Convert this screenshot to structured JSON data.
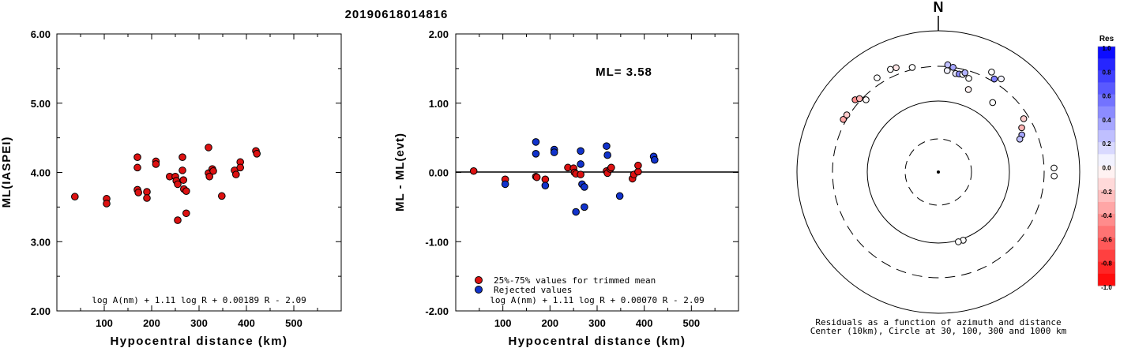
{
  "event_id": "20190618014816",
  "chart_data": [
    {
      "type": "scatter",
      "title": "",
      "xlabel": "Hypocentral distance (km)",
      "ylabel": "ML(IASPEI)",
      "xlim": [
        0,
        600
      ],
      "ylim": [
        2.0,
        6.0
      ],
      "xticks": [
        "100",
        "200",
        "300",
        "400",
        "500"
      ],
      "yticks": [
        "2.00",
        "3.00",
        "4.00",
        "5.00",
        "6.00"
      ],
      "formula": "log A(nm) + 1.11 log R + 0.00189 R - 2.09",
      "series": [
        {
          "color": "#dd1111",
          "points": [
            [
              38,
              3.65
            ],
            [
              105,
              3.62
            ],
            [
              105,
              3.55
            ],
            [
              170,
              4.22
            ],
            [
              170,
              4.07
            ],
            [
              170,
              3.75
            ],
            [
              172,
              3.71
            ],
            [
              190,
              3.72
            ],
            [
              190,
              3.63
            ],
            [
              209,
              4.16
            ],
            [
              209,
              4.12
            ],
            [
              238,
              3.94
            ],
            [
              250,
              3.94
            ],
            [
              252,
              3.88
            ],
            [
              255,
              3.83
            ],
            [
              255,
              3.31
            ],
            [
              265,
              4.22
            ],
            [
              265,
              4.03
            ],
            [
              267,
              3.89
            ],
            [
              268,
              3.76
            ],
            [
              273,
              3.73
            ],
            [
              273,
              3.41
            ],
            [
              320,
              4.36
            ],
            [
              320,
              3.99
            ],
            [
              322,
              3.94
            ],
            [
              328,
              4.05
            ],
            [
              330,
              4.02
            ],
            [
              348,
              3.66
            ],
            [
              375,
              4.03
            ],
            [
              378,
              3.97
            ],
            [
              387,
              4.15
            ],
            [
              387,
              4.07
            ],
            [
              420,
              4.31
            ],
            [
              422,
              4.27
            ]
          ]
        }
      ]
    },
    {
      "type": "scatter",
      "title": "",
      "xlabel": "Hypocentral distance (km)",
      "ylabel": "ML - ML(evt)",
      "xlim": [
        0,
        600
      ],
      "ylim": [
        -2.0,
        2.0
      ],
      "xticks": [
        "100",
        "200",
        "300",
        "400",
        "500"
      ],
      "yticks": [
        "-2.00",
        "-1.00",
        "0.00",
        "1.00",
        "2.00"
      ],
      "annotation": "ML= 3.58",
      "formula": "log A(nm) + 1.11 log R + 0.00070 R - 2.09",
      "legend": [
        "25%-75% values for trimmed mean",
        "Rejected values"
      ],
      "series": [
        {
          "name": "25%-75% values for trimmed mean",
          "color": "#dd1111",
          "points": [
            [
              38,
              0.02
            ],
            [
              105,
              -0.1
            ],
            [
              170,
              -0.06
            ],
            [
              172,
              -0.07
            ],
            [
              190,
              -0.1
            ],
            [
              238,
              0.07
            ],
            [
              250,
              0.06
            ],
            [
              252,
              0.0
            ],
            [
              255,
              -0.02
            ],
            [
              265,
              -0.03
            ],
            [
              320,
              0.02
            ],
            [
              322,
              -0.01
            ],
            [
              328,
              0.05
            ],
            [
              330,
              0.07
            ],
            [
              375,
              -0.09
            ],
            [
              378,
              -0.03
            ],
            [
              387,
              0.01
            ],
            [
              387,
              0.1
            ]
          ]
        },
        {
          "name": "Rejected values",
          "color": "#1133cc",
          "points": [
            [
              105,
              -0.17
            ],
            [
              170,
              0.44
            ],
            [
              170,
              0.27
            ],
            [
              190,
              -0.19
            ],
            [
              209,
              0.33
            ],
            [
              209,
              0.29
            ],
            [
              255,
              -0.57
            ],
            [
              265,
              0.31
            ],
            [
              265,
              0.12
            ],
            [
              268,
              -0.17
            ],
            [
              273,
              -0.21
            ],
            [
              273,
              -0.5
            ],
            [
              320,
              0.38
            ],
            [
              322,
              0.25
            ],
            [
              348,
              -0.34
            ],
            [
              420,
              0.23
            ],
            [
              422,
              0.18
            ]
          ]
        }
      ]
    },
    {
      "type": "polar-scatter",
      "north_label": "N",
      "caption": [
        "Residuals as a function of azimuth and distance",
        "Center (10km), Circle at 30, 100, 300 and 1000 km"
      ],
      "colorbar": {
        "title": "Res",
        "ticks": [
          "1.0",
          "0.8",
          "0.6",
          "0.4",
          "0.2",
          "0.0",
          "-0.2",
          "-0.4",
          "-0.6",
          "-0.8",
          "-1.0"
        ],
        "max_color": "#0000ff",
        "min_color": "#ff0000"
      },
      "points": [
        {
          "az": 299,
          "dist": 330,
          "res": -0.35
        },
        {
          "az": 302,
          "dist": 322,
          "res": -0.2
        },
        {
          "az": 311,
          "dist": 348,
          "res": -0.45
        },
        {
          "az": 313,
          "dist": 320,
          "res": -0.3
        },
        {
          "az": 315,
          "dist": 268,
          "res": -0.02
        },
        {
          "az": 327,
          "dist": 375,
          "res": 0.0
        },
        {
          "az": 335,
          "dist": 387,
          "res": 0.0
        },
        {
          "az": 338,
          "dist": 378,
          "res": -0.1
        },
        {
          "az": 346,
          "dist": 322,
          "res": 0.0
        },
        {
          "az": 5,
          "dist": 265,
          "res": 0.05
        },
        {
          "az": 5,
          "dist": 320,
          "res": 0.25
        },
        {
          "az": 8,
          "dist": 300,
          "res": 0.35
        },
        {
          "az": 10,
          "dist": 250,
          "res": 0.1
        },
        {
          "az": 12,
          "dist": 252,
          "res": 0.45
        },
        {
          "az": 14,
          "dist": 255,
          "res": 0.0
        },
        {
          "az": 15,
          "dist": 273,
          "res": 0.3
        },
        {
          "az": 18,
          "dist": 238,
          "res": 0.0
        },
        {
          "az": 20,
          "dist": 170,
          "res": -0.05
        },
        {
          "az": 28,
          "dist": 387,
          "res": 0.0
        },
        {
          "az": 31,
          "dist": 330,
          "res": 0.5
        },
        {
          "az": 34,
          "dist": 375,
          "res": 0.05
        },
        {
          "az": 38,
          "dist": 172,
          "res": 0.0
        },
        {
          "az": 58,
          "dist": 255,
          "res": -0.2
        },
        {
          "az": 62,
          "dist": 209,
          "res": -0.3
        },
        {
          "az": 66,
          "dist": 190,
          "res": 0.35
        },
        {
          "az": 68,
          "dist": 170,
          "res": 0.25
        },
        {
          "az": 88,
          "dist": 420,
          "res": 0.0
        },
        {
          "az": 92,
          "dist": 422,
          "res": 0.0
        },
        {
          "az": 160,
          "dist": 105,
          "res": 0.0
        },
        {
          "az": 164,
          "dist": 105,
          "res": 0.0
        }
      ]
    }
  ]
}
